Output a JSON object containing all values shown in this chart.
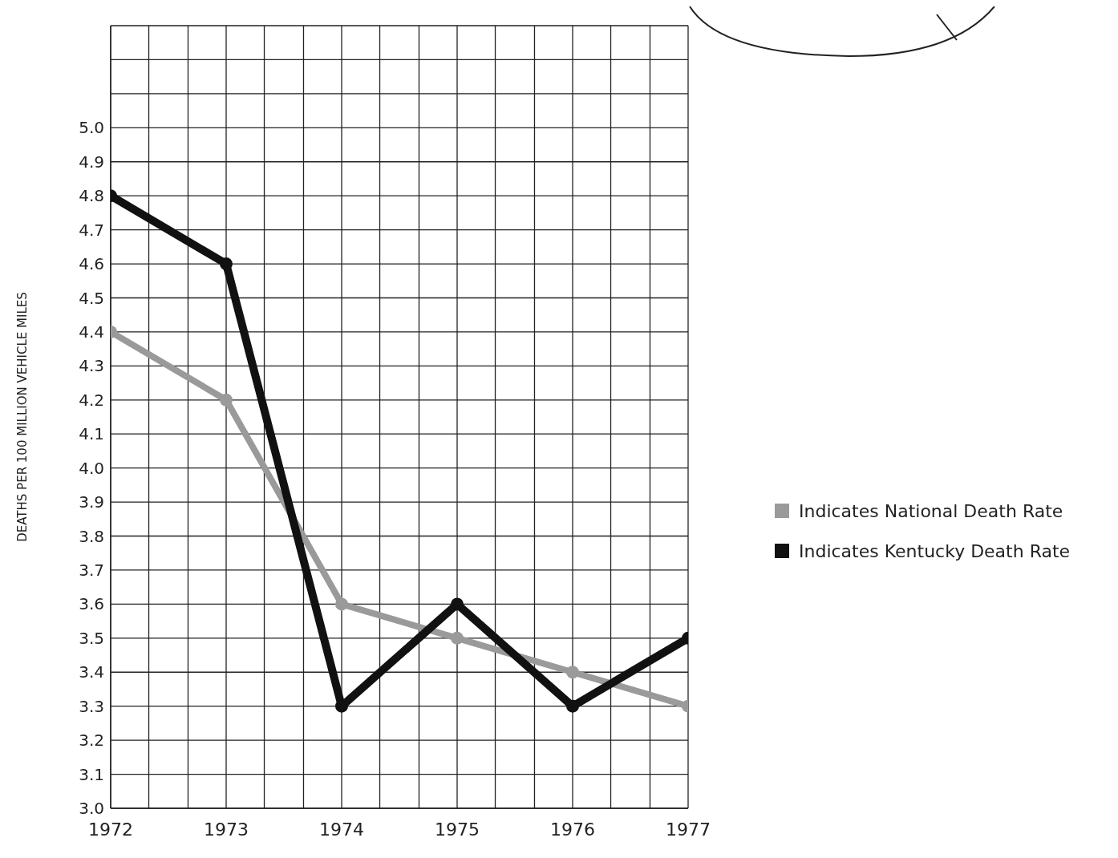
{
  "chart_data": {
    "type": "line",
    "ylabel": "DEATHS PER 100 MILLION VEHICLE MILES",
    "x": [
      1972,
      1973,
      1974,
      1975,
      1976,
      1977
    ],
    "series": [
      {
        "name": "Indicates National Death Rate",
        "color": "#9a9a9a",
        "values": [
          4.4,
          4.2,
          3.6,
          3.5,
          3.4,
          3.3
        ]
      },
      {
        "name": "Indicates Kentucky Death Rate",
        "color": "#111111",
        "values": [
          4.8,
          4.6,
          3.3,
          3.6,
          3.3,
          3.5
        ]
      }
    ],
    "xlim": [
      1972,
      1977
    ],
    "xticks": [
      1972,
      {
        "value": 1972.33,
        "label": null
      },
      {
        "value": 1972.67,
        "label": null
      },
      1973,
      {
        "value": 1973.33,
        "label": null
      },
      {
        "value": 1973.67,
        "label": null
      },
      1974,
      {
        "value": 1974.33,
        "label": null
      },
      {
        "value": 1974.67,
        "label": null
      },
      1975,
      {
        "value": 1975.33,
        "label": null
      },
      {
        "value": 1975.67,
        "label": null
      },
      1976,
      {
        "value": 1976.33,
        "label": null
      },
      {
        "value": 1976.67,
        "label": null
      },
      1977
    ],
    "ylim": [
      3.0,
      5.3
    ],
    "yticks": [
      {
        "value": 3.0,
        "label": "3.0"
      },
      3.1,
      3.2,
      3.3,
      3.4,
      3.5,
      3.6,
      3.7,
      3.8,
      3.9,
      {
        "value": 4.0,
        "label": "4.0"
      },
      4.1,
      4.2,
      4.3,
      4.4,
      4.5,
      4.6,
      4.7,
      4.8,
      4.9,
      {
        "value": 5.0,
        "label": "5.0"
      },
      {
        "value": 5.1,
        "label": null
      },
      {
        "value": 5.2,
        "label": null
      },
      {
        "value": 5.3,
        "label": null
      }
    ],
    "grid": true,
    "legend": "right",
    "marker": "circle",
    "line_style": "solid"
  }
}
